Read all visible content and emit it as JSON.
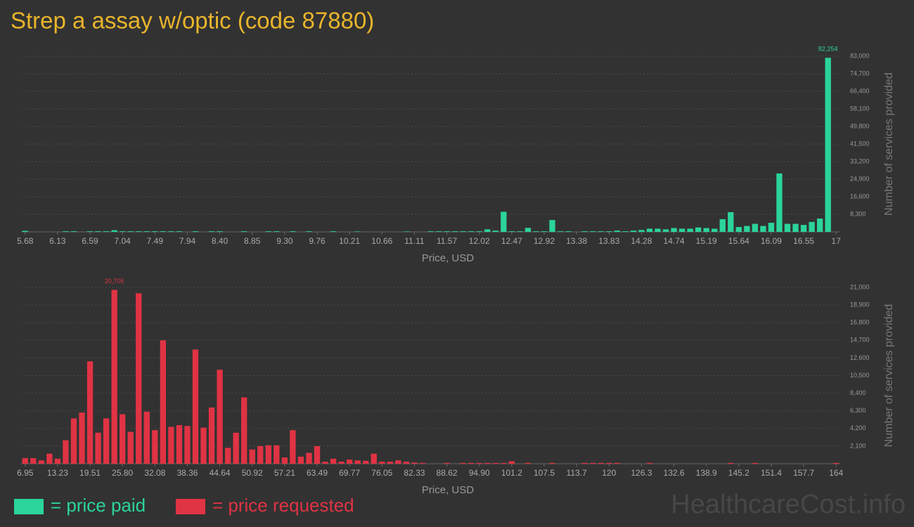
{
  "title": "Strep a assay w/optic (code 87880)",
  "watermark": "HealthcareCost.info",
  "chart_data": [
    {
      "type": "bar",
      "xlabel": "Price, USD",
      "ylabel": "Number of services provided",
      "categories": [
        "5.68",
        null,
        null,
        null,
        "6.13",
        null,
        null,
        null,
        "6.59",
        null,
        null,
        null,
        "7.04",
        null,
        null,
        null,
        "7.49",
        null,
        null,
        null,
        "7.94",
        null,
        null,
        null,
        "8.40",
        null,
        null,
        null,
        "8.85",
        null,
        null,
        null,
        "9.30",
        null,
        null,
        null,
        "9.76",
        null,
        null,
        null,
        "10.21",
        null,
        null,
        null,
        "10.66",
        null,
        null,
        null,
        "11.11",
        null,
        null,
        null,
        "11.57",
        null,
        null,
        null,
        "12.02",
        null,
        null,
        null,
        "12.47",
        null,
        null,
        null,
        "12.92",
        null,
        null,
        null,
        "13.38",
        null,
        null,
        null,
        "13.83",
        null,
        null,
        null,
        "14.28",
        null,
        null,
        null,
        "14.74",
        null,
        null,
        null,
        "15.19",
        null,
        null,
        null,
        "15.64",
        null,
        null,
        null,
        "16.09",
        null,
        null,
        null,
        "16.55",
        null,
        null,
        null,
        "17"
      ],
      "series": [
        {
          "name": "= price paid",
          "color": "#2bd49a",
          "values": [
            500,
            0,
            0,
            0,
            0,
            300,
            300,
            0,
            300,
            300,
            300,
            800,
            300,
            300,
            300,
            300,
            300,
            300,
            300,
            300,
            0,
            300,
            0,
            300,
            300,
            0,
            0,
            300,
            0,
            0,
            300,
            300,
            0,
            300,
            0,
            300,
            0,
            0,
            300,
            0,
            0,
            200,
            0,
            0,
            0,
            0,
            0,
            200,
            0,
            0,
            300,
            300,
            300,
            300,
            300,
            300,
            300,
            1200,
            600,
            9500,
            300,
            300,
            1900,
            300,
            300,
            5600,
            300,
            300,
            0,
            300,
            300,
            300,
            300,
            600,
            300,
            600,
            900,
            1500,
            1500,
            1200,
            1800,
            1500,
            1500,
            2100,
            1800,
            1500,
            6000,
            9300,
            2300,
            2800,
            3800,
            2800,
            4300,
            27600,
            3800,
            3800,
            3300,
            4700,
            6300,
            82254,
            0
          ],
          "value_labels": [
            null,
            null,
            null,
            null,
            null,
            null,
            null,
            null,
            null,
            null,
            null,
            null,
            null,
            null,
            null,
            null,
            null,
            null,
            null,
            null,
            null,
            null,
            null,
            null,
            null,
            null,
            null,
            null,
            null,
            null,
            null,
            null,
            null,
            null,
            null,
            null,
            null,
            null,
            null,
            null,
            null,
            null,
            null,
            null,
            null,
            null,
            null,
            null,
            null,
            null,
            null,
            null,
            null,
            null,
            null,
            null,
            null,
            null,
            null,
            null,
            null,
            null,
            null,
            null,
            null,
            null,
            null,
            null,
            null,
            null,
            null,
            null,
            null,
            null,
            null,
            null,
            null,
            null,
            null,
            null,
            null,
            null,
            null,
            null,
            null,
            null,
            null,
            null,
            null,
            null,
            null,
            null,
            null,
            null,
            null,
            null,
            null,
            null,
            null,
            "82,254",
            null
          ]
        }
      ],
      "ylim": [
        0,
        83000
      ],
      "yticks": [
        {
          "value": 8300,
          "label": "8,300"
        },
        {
          "value": 16600,
          "label": "16,600"
        },
        {
          "value": 24900,
          "label": "24,900"
        },
        {
          "value": 33200,
          "label": "33,200"
        },
        {
          "value": 41500,
          "label": "41,500"
        },
        {
          "value": 49800,
          "label": "49,800"
        },
        {
          "value": 58100,
          "label": "58,100"
        },
        {
          "value": 66400,
          "label": "66,400"
        },
        {
          "value": 74700,
          "label": "74,700"
        },
        {
          "value": 83000,
          "label": "83,000"
        }
      ],
      "grid": true
    },
    {
      "type": "bar",
      "xlabel": "Price, USD",
      "ylabel": "Number of services provided",
      "categories": [
        "6.95",
        null,
        null,
        null,
        "13.23",
        null,
        null,
        null,
        "19.51",
        null,
        null,
        null,
        "25.80",
        null,
        null,
        null,
        "32.08",
        null,
        null,
        null,
        "38.36",
        null,
        null,
        null,
        "44.64",
        null,
        null,
        null,
        "50.92",
        null,
        null,
        null,
        "57.21",
        null,
        null,
        null,
        "63.49",
        null,
        null,
        null,
        "69.77",
        null,
        null,
        null,
        "76.05",
        null,
        null,
        null,
        "82.33",
        null,
        null,
        null,
        "88.62",
        null,
        null,
        null,
        "94.90",
        null,
        null,
        null,
        "101.2",
        null,
        null,
        null,
        "107.5",
        null,
        null,
        null,
        "113.7",
        null,
        null,
        null,
        "120",
        null,
        null,
        null,
        "126.3",
        null,
        null,
        null,
        "132.6",
        null,
        null,
        null,
        "138.9",
        null,
        null,
        null,
        "145.2",
        null,
        null,
        null,
        "151.4",
        null,
        null,
        null,
        "157.7",
        null,
        null,
        null,
        "164"
      ],
      "series": [
        {
          "name": "= price requested",
          "color": "#e03344",
          "values": [
            670,
            670,
            400,
            1200,
            600,
            2800,
            5400,
            6100,
            12200,
            3700,
            5400,
            20705,
            5900,
            3800,
            20300,
            6200,
            4000,
            14700,
            4400,
            4600,
            4500,
            13600,
            4300,
            6700,
            11200,
            1900,
            3700,
            7900,
            1700,
            2100,
            2200,
            2200,
            750,
            4000,
            850,
            1300,
            2100,
            250,
            600,
            250,
            500,
            400,
            350,
            1200,
            250,
            250,
            400,
            250,
            150,
            100,
            0,
            0,
            100,
            0,
            100,
            100,
            100,
            100,
            100,
            100,
            300,
            0,
            100,
            0,
            0,
            100,
            0,
            0,
            0,
            100,
            100,
            100,
            100,
            100,
            0,
            0,
            0,
            100,
            0,
            0,
            0,
            0,
            0,
            0,
            0,
            0,
            0,
            100,
            0,
            0,
            100,
            0,
            0,
            0,
            0,
            0,
            0,
            0,
            0,
            0,
            100
          ],
          "value_labels": [
            null,
            null,
            null,
            null,
            null,
            null,
            null,
            null,
            null,
            null,
            null,
            "20,705",
            null,
            null,
            null,
            null,
            null,
            null,
            null,
            null,
            null,
            null,
            null,
            null,
            null,
            null,
            null,
            null,
            null,
            null,
            null,
            null,
            null,
            null,
            null,
            null,
            null,
            null,
            null,
            null,
            null,
            null,
            null,
            null,
            null,
            null,
            null,
            null,
            null,
            null,
            null,
            null,
            null,
            null,
            null,
            null,
            null,
            null,
            null,
            null,
            null,
            null,
            null,
            null,
            null,
            null,
            null,
            null,
            null,
            null,
            null,
            null,
            null,
            null,
            null,
            null,
            null,
            null,
            null,
            null,
            null,
            null,
            null,
            null,
            null,
            null,
            null,
            null,
            null,
            null,
            null,
            null,
            null,
            null,
            null,
            null,
            null,
            null,
            null,
            null,
            null
          ]
        }
      ],
      "ylim": [
        0,
        21000
      ],
      "yticks": [
        {
          "value": 2100,
          "label": "2,100"
        },
        {
          "value": 4200,
          "label": "4,200"
        },
        {
          "value": 6300,
          "label": "6,300"
        },
        {
          "value": 8400,
          "label": "8,400"
        },
        {
          "value": 10500,
          "label": "10,500"
        },
        {
          "value": 12600,
          "label": "12,600"
        },
        {
          "value": 14700,
          "label": "14,700"
        },
        {
          "value": 16800,
          "label": "16,800"
        },
        {
          "value": 18900,
          "label": "18,900"
        },
        {
          "value": 21000,
          "label": "21,000"
        }
      ],
      "grid": true
    }
  ]
}
